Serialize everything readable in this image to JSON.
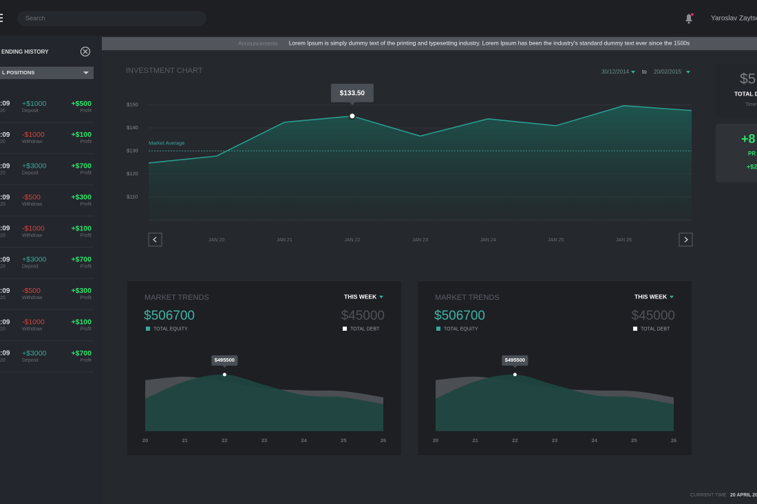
{
  "header": {
    "search_placeholder": "Search",
    "user_name": "Yaroslav Zaytse"
  },
  "sidebar": {
    "title": "ENDING HISTORY",
    "filter": "L POSITIONS",
    "rows": [
      {
        "time": ":09",
        "date": "20",
        "amount": "+$1000",
        "type": "Deposit",
        "profit": "+$500",
        "profit_label": "Profit"
      },
      {
        "time": ":09",
        "date": "20",
        "amount": "-$1000",
        "type": "Withdraw",
        "profit": "+$100",
        "profit_label": "Profit"
      },
      {
        "time": ":09",
        "date": "20",
        "amount": "+$3000",
        "type": "Deposit",
        "profit": "+$700",
        "profit_label": "Profit"
      },
      {
        "time": ":09",
        "date": "20",
        "amount": "-$500",
        "type": "Withdraw",
        "profit": "+$300",
        "profit_label": "Profit"
      },
      {
        "time": ":09",
        "date": "20",
        "amount": "-$1000",
        "type": "Withdraw",
        "profit": "+$100",
        "profit_label": "Profit"
      },
      {
        "time": ":09",
        "date": "20",
        "amount": "+$3000",
        "type": "Deposit",
        "profit": "+$700",
        "profit_label": "Profit"
      },
      {
        "time": ":09",
        "date": "20",
        "amount": "-$500",
        "type": "Withdraw",
        "profit": "+$300",
        "profit_label": "Profit"
      },
      {
        "time": ":09",
        "date": "20",
        "amount": "-$1000",
        "type": "Withdraw",
        "profit": "+$100",
        "profit_label": "Profit"
      },
      {
        "time": ":09",
        "date": "20",
        "amount": "+$3000",
        "type": "Deposit",
        "profit": "+$700",
        "profit_label": "Profit"
      }
    ]
  },
  "announcement": {
    "label": "Announcements",
    "text": "Lorem Ipsum is simply dummy text of the printing and typesetting industry. Lorem Ipsum has been the industry's standard dummy text ever since the 1500s"
  },
  "side_cards": [
    {
      "value": "$5",
      "label": "TOTAL D",
      "note": "Time"
    },
    {
      "value": "+8",
      "label": "PR",
      "note": "+$2"
    }
  ],
  "footer": {
    "time_label": "CURRENT TIME",
    "time_value": "20 APRIL 20"
  },
  "chart_data": [
    {
      "type": "line",
      "title": "INVESTMENT CHART",
      "date_from": "30/12/2014",
      "date_to_label": "to",
      "date_to": "20/02/2015",
      "tooltip": "$133.50",
      "categories": [
        null,
        "JAN 20",
        "JAN 21",
        "JAN 22",
        "JAN 23",
        "JAN 24",
        "JAN 25",
        "JAN 26",
        null
      ],
      "values": [
        124.8,
        127.8,
        142.5,
        145.2,
        136.5,
        144,
        141,
        149.7,
        147.6
      ],
      "color": "#2a9d8f",
      "ylim": [
        100,
        155
      ],
      "yticks": [
        {
          "value": 150,
          "label": "$150"
        },
        {
          "value": 140,
          "label": "$140"
        },
        {
          "value": 130,
          "label": "$130"
        },
        {
          "value": 120,
          "label": "$120"
        },
        {
          "value": 110,
          "label": "$110"
        }
      ],
      "reference_line": {
        "label": "Market Average",
        "value": 130
      },
      "grid": true
    },
    {
      "type": "area",
      "title": "MARKET TRENDS",
      "period": "THIS WEEK",
      "equity": "$506700",
      "debt": "$45000",
      "tooltip": "$495500",
      "categories": [
        "20",
        "21",
        "22",
        "23",
        "24",
        "25",
        "26"
      ],
      "ylim": [
        0,
        500000
      ],
      "series": [
        {
          "name": "TOTAL DEBT",
          "color": "#4b4e53",
          "values": [
            447000,
            477000,
            435000,
            375000,
            357000,
            350000,
            296000
          ]
        },
        {
          "name": "TOTAL EQUITY",
          "color": "#1f4640",
          "values": [
            284000,
            435000,
            495500,
            405000,
            314000,
            296000,
            236000
          ]
        }
      ]
    },
    {
      "type": "area",
      "title": "MARKET TRENDS",
      "period": "THIS WEEK",
      "equity": "$506700",
      "debt": "$45000",
      "tooltip": "$495500",
      "categories": [
        "20",
        "21",
        "22",
        "23",
        "24",
        "25",
        "26"
      ],
      "ylim": [
        0,
        500000
      ],
      "series": [
        {
          "name": "TOTAL DEBT",
          "color": "#4b4e53",
          "values": [
            447000,
            477000,
            435000,
            375000,
            357000,
            350000,
            296000
          ]
        },
        {
          "name": "TOTAL EQUITY",
          "color": "#1f4640",
          "values": [
            284000,
            435000,
            495500,
            405000,
            314000,
            296000,
            236000
          ]
        }
      ]
    }
  ]
}
